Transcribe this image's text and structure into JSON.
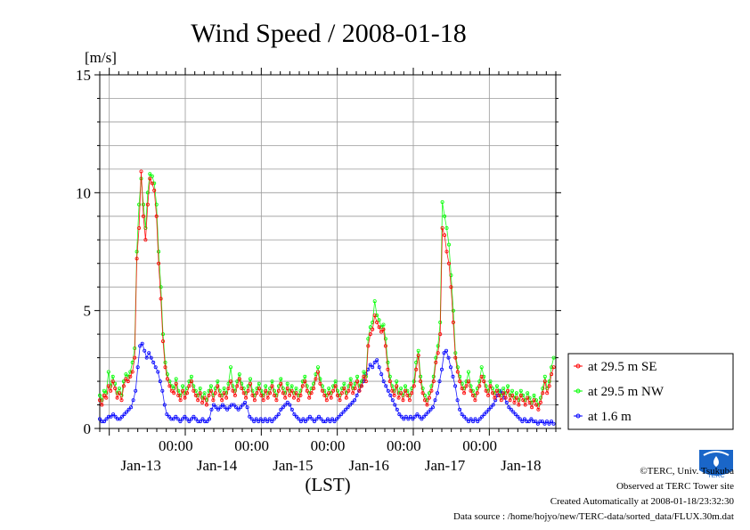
{
  "chart_data": {
    "type": "line",
    "title": "Wind Speed / 2008-01-18",
    "ylabel": "[m/s]",
    "xlabel": "(LST)",
    "ylim": [
      0,
      15
    ],
    "yticks": [
      "0",
      "5",
      "10",
      "15"
    ],
    "xlim_hours": [
      0,
      144
    ],
    "xticks_time": [
      "00:00",
      "00:00",
      "00:00",
      "00:00",
      "00:00"
    ],
    "xticks_day": [
      "Jan-13",
      "Jan-14",
      "Jan-15",
      "Jan-16",
      "Jan-17",
      "Jan-18"
    ],
    "grid": true,
    "legend_position": "right",
    "x_start": "2008-01-12T21:00",
    "x_step_hours": 0.5,
    "series": [
      {
        "name": "at 29.5 m SE",
        "color": "#ff0000",
        "values": [
          1.2,
          1.0,
          1.4,
          1.3,
          1.8,
          1.6,
          2.0,
          1.7,
          1.3,
          1.5,
          1.2,
          1.8,
          2.1,
          2.0,
          2.2,
          2.4,
          3.0,
          7.2,
          8.5,
          10.9,
          9.0,
          8.0,
          9.5,
          10.6,
          10.4,
          10.1,
          9.0,
          7.0,
          5.5,
          3.7,
          2.6,
          2.1,
          1.8,
          1.6,
          1.5,
          1.9,
          1.4,
          1.2,
          1.6,
          1.3,
          1.5,
          1.8,
          2.0,
          1.6,
          1.4,
          1.2,
          1.5,
          1.1,
          1.3,
          1.0,
          1.4,
          1.6,
          1.2,
          1.5,
          1.8,
          1.4,
          1.2,
          1.5,
          1.3,
          1.7,
          2.0,
          1.6,
          1.4,
          1.8,
          2.1,
          1.7,
          1.5,
          1.3,
          1.6,
          1.9,
          1.4,
          1.2,
          1.5,
          1.7,
          1.4,
          1.2,
          1.6,
          1.3,
          1.5,
          1.8,
          1.4,
          1.2,
          1.6,
          1.9,
          1.5,
          1.3,
          1.7,
          1.4,
          1.6,
          1.3,
          1.5,
          1.2,
          1.4,
          1.8,
          2.0,
          1.6,
          1.3,
          1.5,
          1.7,
          2.1,
          2.4,
          1.9,
          1.6,
          1.4,
          1.2,
          1.5,
          1.3,
          1.6,
          1.8,
          1.4,
          1.2,
          1.5,
          1.7,
          1.3,
          1.6,
          1.9,
          1.5,
          1.7,
          2.0,
          1.6,
          1.8,
          2.2,
          2.0,
          3.5,
          4.0,
          4.2,
          4.8,
          4.5,
          4.3,
          4.1,
          4.2,
          3.5,
          2.5,
          2.0,
          1.6,
          1.4,
          1.8,
          1.3,
          1.5,
          1.2,
          1.6,
          1.4,
          1.2,
          1.5,
          1.8,
          2.5,
          3.1,
          2.0,
          1.5,
          1.2,
          1.0,
          1.3,
          1.6,
          2.0,
          2.8,
          3.2,
          4.0,
          8.5,
          8.2,
          7.5,
          7.0,
          6.0,
          4.5,
          3.0,
          2.4,
          2.0,
          1.7,
          1.5,
          1.8,
          2.0,
          1.6,
          1.4,
          1.2,
          1.5,
          1.8,
          2.2,
          2.0,
          1.6,
          1.4,
          1.8,
          1.5,
          1.3,
          1.6,
          1.4,
          1.2,
          1.5,
          1.3,
          1.6,
          1.2,
          1.4,
          1.1,
          1.3,
          1.0,
          1.4,
          1.2,
          1.0,
          1.3,
          1.1,
          0.9,
          1.2,
          1.0,
          0.8,
          1.1,
          1.5,
          2.0,
          1.5,
          1.8,
          2.3,
          2.6
        ],
        "markers_start": 0
      },
      {
        "name": "at 29.5 m NW",
        "color": "#00ff00",
        "values": [
          1.4,
          1.2,
          1.6,
          1.5,
          2.4,
          1.8,
          2.2,
          1.9,
          1.5,
          1.7,
          1.4,
          2.0,
          2.3,
          2.2,
          2.4,
          2.8,
          3.4,
          7.5,
          9.5,
          10.6,
          9.5,
          8.5,
          10.0,
          10.8,
          10.7,
          10.4,
          9.5,
          7.5,
          6.0,
          4.0,
          2.8,
          2.3,
          2.0,
          1.8,
          1.7,
          2.1,
          1.6,
          1.4,
          1.8,
          1.5,
          1.7,
          2.0,
          2.2,
          1.8,
          1.6,
          1.4,
          1.7,
          1.3,
          1.5,
          1.2,
          1.6,
          1.8,
          1.4,
          1.7,
          2.0,
          1.6,
          1.4,
          1.7,
          1.5,
          1.9,
          2.6,
          1.8,
          1.6,
          2.0,
          2.3,
          1.9,
          1.7,
          1.5,
          1.8,
          2.1,
          1.6,
          1.4,
          1.7,
          1.9,
          1.6,
          1.4,
          1.8,
          1.5,
          1.7,
          2.0,
          1.6,
          1.4,
          1.8,
          2.1,
          1.7,
          1.5,
          1.9,
          1.6,
          1.8,
          1.5,
          1.7,
          1.4,
          1.6,
          2.0,
          2.2,
          1.8,
          1.5,
          1.7,
          1.9,
          2.3,
          2.6,
          2.1,
          1.8,
          1.6,
          1.4,
          1.7,
          1.5,
          1.8,
          2.0,
          1.6,
          1.4,
          1.7,
          1.9,
          1.5,
          1.8,
          2.1,
          1.7,
          1.9,
          2.2,
          1.8,
          2.0,
          2.4,
          2.2,
          3.8,
          4.3,
          4.5,
          5.4,
          4.8,
          4.6,
          4.3,
          4.4,
          3.8,
          2.8,
          2.2,
          1.8,
          1.6,
          2.0,
          1.5,
          1.7,
          1.4,
          1.8,
          1.6,
          1.4,
          1.7,
          2.0,
          2.8,
          3.3,
          2.2,
          1.7,
          1.4,
          1.2,
          1.5,
          1.8,
          2.2,
          3.0,
          3.5,
          4.5,
          9.6,
          9.0,
          8.5,
          7.8,
          6.5,
          5.0,
          3.2,
          2.6,
          2.2,
          1.9,
          1.7,
          2.0,
          2.4,
          1.8,
          1.6,
          1.4,
          1.7,
          2.0,
          2.6,
          2.2,
          1.8,
          1.6,
          2.0,
          1.7,
          1.5,
          1.8,
          1.6,
          1.4,
          1.7,
          1.5,
          1.8,
          1.4,
          1.6,
          1.3,
          1.5,
          1.2,
          1.6,
          1.4,
          1.2,
          1.5,
          1.3,
          1.1,
          1.4,
          1.2,
          1.0,
          1.3,
          1.7,
          2.2,
          1.7,
          2.0,
          2.6,
          3.0
        ],
        "markers_start": 0
      },
      {
        "name": "at 1.6 m",
        "color": "#0000ff",
        "values": [
          0.4,
          0.3,
          0.3,
          0.4,
          0.5,
          0.5,
          0.6,
          0.5,
          0.4,
          0.4,
          0.5,
          0.6,
          0.7,
          0.8,
          0.9,
          1.2,
          1.6,
          2.6,
          3.5,
          3.6,
          3.3,
          3.0,
          3.2,
          3.0,
          2.8,
          2.6,
          2.4,
          2.0,
          1.6,
          1.0,
          0.6,
          0.5,
          0.4,
          0.4,
          0.5,
          0.4,
          0.3,
          0.4,
          0.5,
          0.4,
          0.3,
          0.4,
          0.5,
          0.4,
          0.3,
          0.3,
          0.4,
          0.3,
          0.3,
          0.4,
          0.8,
          1.0,
          0.9,
          0.8,
          0.9,
          1.0,
          0.9,
          0.8,
          0.9,
          1.0,
          1.0,
          0.9,
          0.8,
          0.9,
          1.0,
          1.1,
          0.9,
          0.5,
          0.4,
          0.3,
          0.4,
          0.3,
          0.4,
          0.3,
          0.4,
          0.3,
          0.4,
          0.3,
          0.4,
          0.5,
          0.6,
          0.8,
          0.9,
          1.0,
          1.1,
          1.0,
          0.8,
          0.6,
          0.5,
          0.4,
          0.3,
          0.4,
          0.3,
          0.4,
          0.5,
          0.4,
          0.3,
          0.4,
          0.5,
          0.4,
          0.3,
          0.3,
          0.4,
          0.3,
          0.4,
          0.3,
          0.4,
          0.5,
          0.6,
          0.7,
          0.8,
          0.9,
          1.0,
          1.1,
          1.2,
          1.4,
          1.6,
          1.8,
          2.0,
          2.3,
          2.5,
          2.7,
          2.6,
          2.8,
          2.9,
          2.6,
          2.3,
          2.0,
          1.8,
          1.6,
          1.4,
          1.2,
          1.0,
          0.8,
          0.6,
          0.5,
          0.4,
          0.5,
          0.4,
          0.5,
          0.4,
          0.5,
          0.6,
          0.5,
          0.4,
          0.5,
          0.6,
          0.7,
          0.8,
          0.9,
          1.2,
          1.5,
          2.0,
          2.5,
          3.2,
          3.3,
          3.0,
          2.6,
          2.2,
          1.8,
          1.2,
          0.8,
          0.6,
          0.5,
          0.4,
          0.3,
          0.4,
          0.3,
          0.4,
          0.3,
          0.4,
          0.5,
          0.6,
          0.7,
          0.8,
          0.9,
          1.0,
          1.2,
          1.4,
          1.6,
          1.5,
          1.3,
          1.1,
          0.9,
          0.8,
          0.7,
          0.6,
          0.5,
          0.4,
          0.3,
          0.4,
          0.3,
          0.3,
          0.4,
          0.3,
          0.3,
          0.2,
          0.3,
          0.3,
          0.2,
          0.3,
          0.2,
          0.3,
          0.2
        ],
        "markers_start": 0
      }
    ]
  },
  "footer": {
    "copyright": "©TERC, Univ. Tsukuba",
    "observed": "Observed at TERC Tower site",
    "created": "Created Automatically at 2008-01-18/23:32:30",
    "source": "Data source : /home/hojyo/new/TERC-data/sorted_data/FLUX.30m.dat",
    "logo_text": "TERC"
  }
}
